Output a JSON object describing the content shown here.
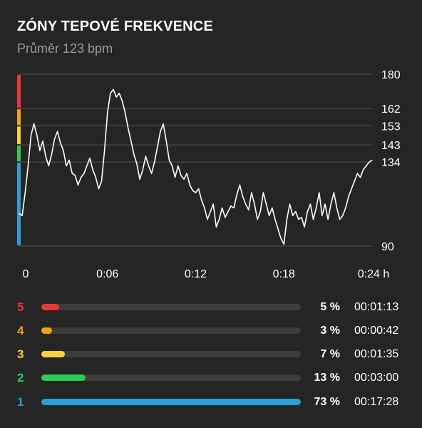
{
  "header": {
    "title": "ZÓNY TEPOVÉ FREKVENCE",
    "subtitle": "Průměr 123 bpm"
  },
  "colors": {
    "background": "#252525",
    "grid": "#555555",
    "line": "#ffffff",
    "track": "#3d3d3d",
    "zone5": "#e8383b",
    "zone4": "#f2a21b",
    "zone3": "#f7d23b",
    "zone2": "#2ecc55",
    "zone1": "#2a9fd8"
  },
  "chart_data": {
    "type": "line",
    "title": "",
    "xlabel": "",
    "ylabel": "",
    "ylim": [
      90,
      180
    ],
    "xlim": [
      0,
      24
    ],
    "y_ticks": [
      {
        "value": 180,
        "label": "180"
      },
      {
        "value": 162,
        "label": "162"
      },
      {
        "value": 153,
        "label": "153"
      },
      {
        "value": 143,
        "label": "143"
      },
      {
        "value": 134,
        "label": "134"
      },
      {
        "value": 90,
        "label": "90"
      }
    ],
    "x_ticks": [
      {
        "value": 0,
        "label": "0"
      },
      {
        "value": 6,
        "label": "0:06"
      },
      {
        "value": 12,
        "label": "0:12"
      },
      {
        "value": 18,
        "label": "0:18"
      },
      {
        "value": 24,
        "label": "0:24 h"
      }
    ],
    "zone_bands": [
      {
        "zone": "5",
        "from": 162,
        "to": 180,
        "color": "#e8383b"
      },
      {
        "zone": "4",
        "from": 153,
        "to": 162,
        "color": "#f2a21b"
      },
      {
        "zone": "3",
        "from": 143,
        "to": 153,
        "color": "#f7d23b"
      },
      {
        "zone": "2",
        "from": 134,
        "to": 143,
        "color": "#2ecc55"
      },
      {
        "zone": "1",
        "from": 90,
        "to": 134,
        "color": "#2a9fd8"
      }
    ],
    "series": [
      {
        "x": [
          0,
          0.2,
          0.4,
          0.6,
          0.8,
          1.0,
          1.2,
          1.4,
          1.6,
          1.8,
          2.0,
          2.2,
          2.4,
          2.6,
          2.8,
          3.0,
          3.2,
          3.4,
          3.6,
          3.8,
          4.0,
          4.2,
          4.4,
          4.6,
          4.8,
          5.0,
          5.2,
          5.4,
          5.6,
          5.8,
          6.0,
          6.2,
          6.4,
          6.6,
          6.8,
          7.0,
          7.2,
          7.4,
          7.6,
          7.8,
          8.0,
          8.2,
          8.4,
          8.6,
          8.8,
          9.0,
          9.2,
          9.4,
          9.6,
          9.8,
          10.0,
          10.2,
          10.4,
          10.6,
          10.8,
          11.0,
          11.2,
          11.4,
          11.6,
          11.8,
          12.0,
          12.2,
          12.4,
          12.6,
          12.8,
          13.0,
          13.2,
          13.4,
          13.6,
          13.8,
          14.0,
          14.2,
          14.4,
          14.6,
          14.8,
          15.0,
          15.2,
          15.4,
          15.6,
          15.8,
          16.0,
          16.2,
          16.4,
          16.6,
          16.8,
          17.0,
          17.2,
          17.4,
          17.6,
          17.8,
          18.0,
          18.2,
          18.4,
          18.6,
          18.8,
          19.0,
          19.2,
          19.4,
          19.6,
          19.8,
          20.0,
          20.2,
          20.4,
          20.6,
          20.8,
          21.0,
          21.2,
          21.4,
          21.6,
          21.8,
          22.0,
          22.2,
          22.4,
          22.6,
          22.8,
          23.0,
          23.2,
          23.4,
          23.6,
          23.8,
          24.0
        ],
        "values": [
          107,
          106,
          118,
          132,
          148,
          154,
          148,
          140,
          145,
          137,
          132,
          138,
          146,
          150,
          144,
          140,
          132,
          135,
          128,
          127,
          122,
          126,
          128,
          132,
          136,
          130,
          126,
          120,
          124,
          140,
          160,
          170,
          172,
          168,
          170,
          166,
          160,
          152,
          145,
          138,
          133,
          125,
          130,
          137,
          132,
          128,
          134,
          142,
          150,
          154,
          145,
          135,
          132,
          126,
          132,
          127,
          125,
          128,
          122,
          119,
          118,
          120,
          114,
          110,
          104,
          108,
          112,
          100,
          104,
          110,
          105,
          108,
          111,
          110,
          117,
          122,
          116,
          112,
          109,
          118,
          112,
          104,
          108,
          118,
          112,
          106,
          110,
          104,
          99,
          94,
          91,
          104,
          112,
          106,
          108,
          104,
          105,
          100,
          108,
          112,
          104,
          110,
          118,
          106,
          112,
          104,
          112,
          118,
          110,
          104,
          106,
          110,
          116,
          120,
          124,
          128,
          126,
          130,
          132,
          134,
          135
        ]
      }
    ]
  },
  "zones": [
    {
      "num": "5",
      "percent": "5 %",
      "fraction": 0.07,
      "time": "00:01:13",
      "color": "#e8383b"
    },
    {
      "num": "4",
      "percent": "3 %",
      "fraction": 0.042,
      "time": "00:00:42",
      "color": "#f2a21b"
    },
    {
      "num": "3",
      "percent": "7 %",
      "fraction": 0.09,
      "time": "00:01:35",
      "color": "#f7d23b"
    },
    {
      "num": "2",
      "percent": "13 %",
      "fraction": 0.17,
      "time": "00:03:00",
      "color": "#2ecc55"
    },
    {
      "num": "1",
      "percent": "73 %",
      "fraction": 1.0,
      "time": "00:17:28",
      "color": "#2a9fd8"
    }
  ]
}
